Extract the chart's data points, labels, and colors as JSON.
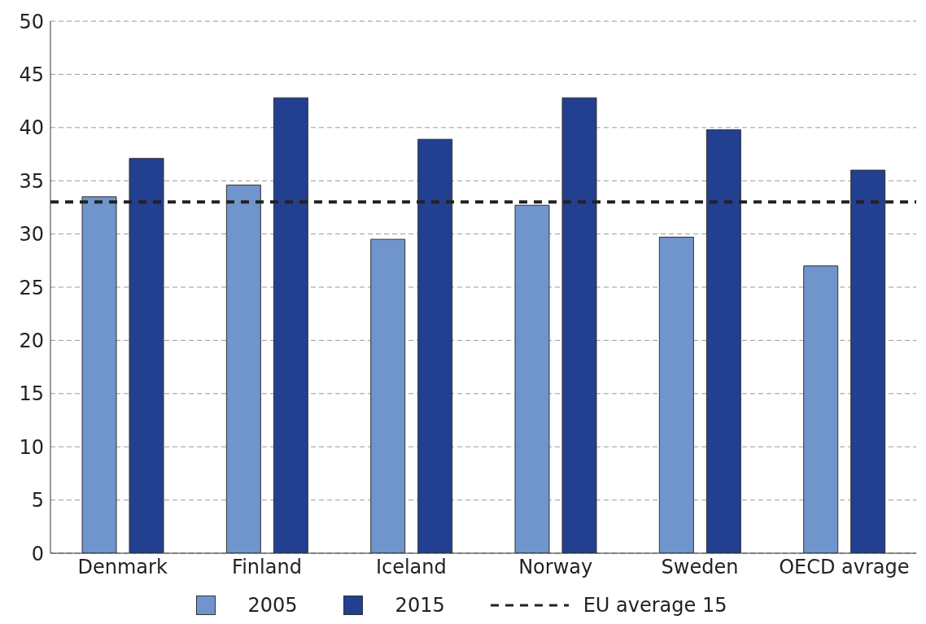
{
  "chart_data": {
    "type": "bar",
    "categories": [
      "Denmark",
      "Finland",
      "Iceland",
      "Norway",
      "Sweden",
      "OECD avrage"
    ],
    "series": [
      {
        "name": "2005",
        "color": "#7094cc",
        "values": [
          33.5,
          34.6,
          29.5,
          32.7,
          29.7,
          27.0
        ]
      },
      {
        "name": "2015",
        "color": "#233f8f",
        "values": [
          37.1,
          42.8,
          38.9,
          42.8,
          39.8,
          36.0
        ]
      }
    ],
    "ylim": [
      0,
      50
    ],
    "yticks": [
      0,
      5,
      10,
      15,
      20,
      25,
      30,
      35,
      40,
      45,
      50
    ],
    "grid": "y",
    "legend": "bottom",
    "ref_lines": [
      {
        "axis": "y",
        "value": 33,
        "label": "EU average 15",
        "color": "#222222",
        "line_style": "dashed"
      }
    ]
  }
}
